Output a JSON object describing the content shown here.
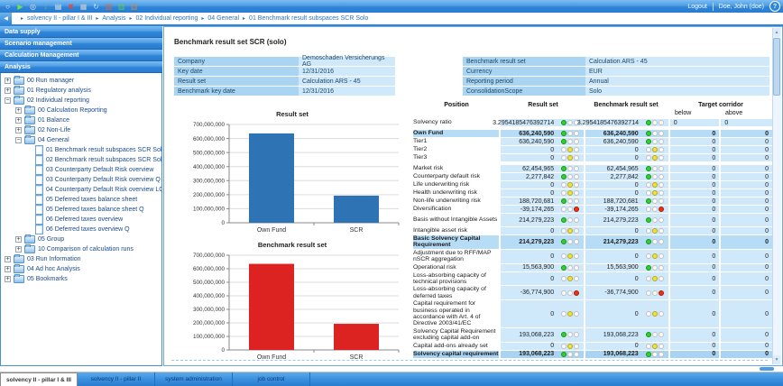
{
  "topbar": {
    "icons": [
      "app-logo-icon",
      "run-icon",
      "search-icon",
      "import-icon",
      "edit-icon",
      "delete-icon",
      "save-icon",
      "refresh-icon",
      "report-red-icon",
      "report-green-icon",
      "package-icon"
    ],
    "logout_label": "Logout",
    "user_label": "Doe, John (doe)"
  },
  "breadcrumb": {
    "items": [
      "solvency II - pillar I & III",
      "Analysis",
      "02 Individual reporting",
      "04 General",
      "01 Benchmark result subspaces SCR Solo"
    ]
  },
  "sidebar": {
    "sections": [
      "Data supply",
      "Scenario management",
      "Calculation Management",
      "Analysis"
    ],
    "tree": [
      {
        "exp": "+",
        "icon": "folder",
        "label": "00 Run manager",
        "level": 0
      },
      {
        "exp": "+",
        "icon": "folder",
        "label": "01 Regulatory analysis",
        "level": 0
      },
      {
        "exp": "-",
        "icon": "folder",
        "label": "02 Individual reporting",
        "level": 0
      },
      {
        "exp": "+",
        "icon": "folder",
        "label": "00 Calculation Reporting",
        "level": 1
      },
      {
        "exp": "+",
        "icon": "folder",
        "label": "01 Balance",
        "level": 1
      },
      {
        "exp": "+",
        "icon": "folder",
        "label": "02 Non-Life",
        "level": 1
      },
      {
        "exp": "-",
        "icon": "folder",
        "label": "04 General",
        "level": 1
      },
      {
        "icon": "doc",
        "label": "01 Benchmark result subspaces SCR Solo",
        "level": 2
      },
      {
        "icon": "doc",
        "label": "02 Benchmark result subspaces SCR Solo Q",
        "level": 2
      },
      {
        "icon": "doc",
        "label": "03 Counterparty Default Risk overview",
        "level": 2
      },
      {
        "icon": "doc",
        "label": "03 Counterparty Default Risk overview Q",
        "level": 2
      },
      {
        "icon": "doc",
        "label": "04 Counterparty Default Risk overview LGDs",
        "level": 2
      },
      {
        "icon": "doc",
        "label": "05 Deferred taxes balance sheet",
        "level": 2
      },
      {
        "icon": "doc",
        "label": "05 Deferred taxes balance sheet Q",
        "level": 2
      },
      {
        "icon": "doc",
        "label": "06 Deferred taxes overview",
        "level": 2
      },
      {
        "icon": "doc",
        "label": "06 Deferred taxes overview Q",
        "level": 2
      },
      {
        "exp": "+",
        "icon": "folder",
        "label": "05 Group",
        "level": 1
      },
      {
        "exp": "+",
        "icon": "folder",
        "label": "10 Comparison of calculation runs",
        "level": 1
      },
      {
        "exp": "+",
        "icon": "folder",
        "label": "03 Run Information",
        "level": 0
      },
      {
        "exp": "+",
        "icon": "folder",
        "label": "04 Ad hoc Analysis",
        "level": 0
      },
      {
        "exp": "+",
        "icon": "folder",
        "label": "05 Bookmarks",
        "level": 0
      }
    ]
  },
  "content": {
    "title": "Benchmark result set SCR (solo)",
    "info_left": [
      {
        "label": "Company",
        "value": "Demoschaden Versicherungs AG"
      },
      {
        "label": "Key date",
        "value": "12/31/2016"
      },
      {
        "label": "Result set",
        "value": "Calculation ARS - 45"
      },
      {
        "label": "Benchmark key date",
        "value": "12/31/2016"
      }
    ],
    "info_right": [
      {
        "label": "Benchmark result set",
        "value": "Calculation ARS - 45"
      },
      {
        "label": "Currency",
        "value": "EUR"
      },
      {
        "label": "Reporting period",
        "value": "Annual"
      },
      {
        "label": "ConsolidationScope",
        "value": "Solo"
      }
    ],
    "table": {
      "col_position": "Position",
      "col_result": "Result set",
      "col_benchmark": "Benchmark result set",
      "col_target": "Target corridor",
      "col_below": "below",
      "col_above": "above",
      "rows": [
        {
          "label": "Solvency ratio",
          "result": "3.2954185476392714",
          "benchmark": "3.2954185476392714",
          "light": "green",
          "below": "0",
          "above": "0",
          "style": "normal",
          "gap": false,
          "corridor_align": "left"
        },
        {
          "label": "Own Fund",
          "result": "636,240,590",
          "benchmark": "636,240,590",
          "light": "green",
          "below": "0",
          "above": "0",
          "style": "strong",
          "gap": true
        },
        {
          "label": "Tier1",
          "result": "636,240,590",
          "benchmark": "636,240,590",
          "light": "green",
          "below": "0",
          "above": "0",
          "style": "normal",
          "gap": false
        },
        {
          "label": "Tier2",
          "result": "0",
          "benchmark": "0",
          "light": "yellow",
          "below": "0",
          "above": "0",
          "style": "normal",
          "gap": false
        },
        {
          "label": "Tier3",
          "result": "0",
          "benchmark": "0",
          "light": "yellow",
          "below": "0",
          "above": "0",
          "style": "normal",
          "gap": false
        },
        {
          "label": "Market risk",
          "result": "62,454,965",
          "benchmark": "62,454,965",
          "light": "green",
          "below": "0",
          "above": "0",
          "style": "normal",
          "gap": true
        },
        {
          "label": "Counterparty default risk",
          "result": "2,277,842",
          "benchmark": "2,277,842",
          "light": "green",
          "below": "0",
          "above": "0",
          "style": "normal",
          "gap": false
        },
        {
          "label": "Life underwriting risk",
          "result": "0",
          "benchmark": "0",
          "light": "yellow",
          "below": "0",
          "above": "0",
          "style": "normal",
          "gap": false
        },
        {
          "label": "Health underwriting risk",
          "result": "0",
          "benchmark": "0",
          "light": "yellow",
          "below": "0",
          "above": "0",
          "style": "normal",
          "gap": false
        },
        {
          "label": "Non-life underwriting risk",
          "result": "188,720,681",
          "benchmark": "188,720,681",
          "light": "green",
          "below": "0",
          "above": "0",
          "style": "normal",
          "gap": false
        },
        {
          "label": "Diversification",
          "result": "-39,174,265",
          "benchmark": "-39,174,265",
          "light": "red",
          "below": "0",
          "above": "0",
          "style": "normal",
          "gap": false
        },
        {
          "label": "Basis without Intangible Assets",
          "result": "214,279,223",
          "benchmark": "214,279,223",
          "light": "green",
          "below": "0",
          "above": "0",
          "style": "normal",
          "gap": false
        },
        {
          "label": "Intangible asset risk",
          "result": "0",
          "benchmark": "0",
          "light": "yellow",
          "below": "0",
          "above": "0",
          "style": "normal",
          "gap": false
        },
        {
          "label": "Basic Solvency Capital Requirement",
          "result": "214,279,223",
          "benchmark": "214,279,223",
          "light": "green",
          "below": "0",
          "above": "0",
          "style": "strong",
          "gap": false
        },
        {
          "label": "Adjustment due to RFF/MAP nSCR aggregation",
          "result": "0",
          "benchmark": "0",
          "light": "yellow",
          "below": "0",
          "above": "0",
          "style": "normal",
          "gap": false
        },
        {
          "label": "Operational risk",
          "result": "15,563,900",
          "benchmark": "15,563,900",
          "light": "green",
          "below": "0",
          "above": "0",
          "style": "normal",
          "gap": false
        },
        {
          "label": "Loss-absorbing capacity of technical provisions",
          "result": "0",
          "benchmark": "0",
          "light": "yellow",
          "below": "0",
          "above": "0",
          "style": "normal",
          "gap": false
        },
        {
          "label": "Loss-absorbing capacity of deferred taxes",
          "result": "-36,774,900",
          "benchmark": "-36,774,900",
          "light": "red",
          "below": "0",
          "above": "0",
          "style": "normal",
          "gap": false
        },
        {
          "label": "Capital requirement for business operated in accordance with Art. 4 of Directive 2003/41/EC",
          "result": "0",
          "benchmark": "0",
          "light": "yellow",
          "below": "0",
          "above": "0",
          "style": "normal",
          "gap": false
        },
        {
          "label": "Solvency Capital Requirement excluding capital add-on",
          "result": "193,068,223",
          "benchmark": "193,068,223",
          "light": "green",
          "below": "0",
          "above": "0",
          "style": "normal",
          "gap": false
        },
        {
          "label": "Capital add-ons already set",
          "result": "0",
          "benchmark": "0",
          "light": "yellow",
          "below": "0",
          "above": "0",
          "style": "normal",
          "gap": false
        },
        {
          "label": "Solvency capital requirement",
          "result": "193,068,223",
          "benchmark": "193,068,223",
          "light": "green",
          "below": "0",
          "above": "0",
          "style": "total",
          "gap": false
        }
      ]
    }
  },
  "tabs": [
    {
      "label": "solvency II - pillar I & III",
      "active": true
    },
    {
      "label": "solvency II - pillar II",
      "active": false
    },
    {
      "label": "system administration",
      "active": false
    },
    {
      "label": "job control",
      "active": false
    }
  ],
  "chart_data": [
    {
      "type": "bar",
      "title": "Result set",
      "categories": [
        "Own Fund",
        "SCR"
      ],
      "values": [
        636240590,
        193068223
      ],
      "xlabel": "",
      "ylabel": "",
      "ylim": [
        0,
        700000000
      ],
      "ytick_step": 100000000,
      "bar_color": "#2e74b5",
      "grid": true,
      "legend": false
    },
    {
      "type": "bar",
      "title": "Benchmark result set",
      "categories": [
        "Own Fund",
        "SCR"
      ],
      "values": [
        636240590,
        193068223
      ],
      "xlabel": "",
      "ylabel": "",
      "ylim": [
        0,
        700000000
      ],
      "ytick_step": 100000000,
      "bar_color": "#dd2222",
      "grid": true,
      "legend": false
    }
  ],
  "colors": {
    "accent": "#2f85d8",
    "bar_blue": "#2e74b5",
    "bar_red": "#dd2222",
    "light_green": "#2fd12f",
    "light_yellow": "#f2e23c",
    "light_red": "#f03010",
    "cell_blue": "#cfe9fb",
    "row_strong": "#b7dcf6",
    "row_total": "#a8d3f2"
  }
}
